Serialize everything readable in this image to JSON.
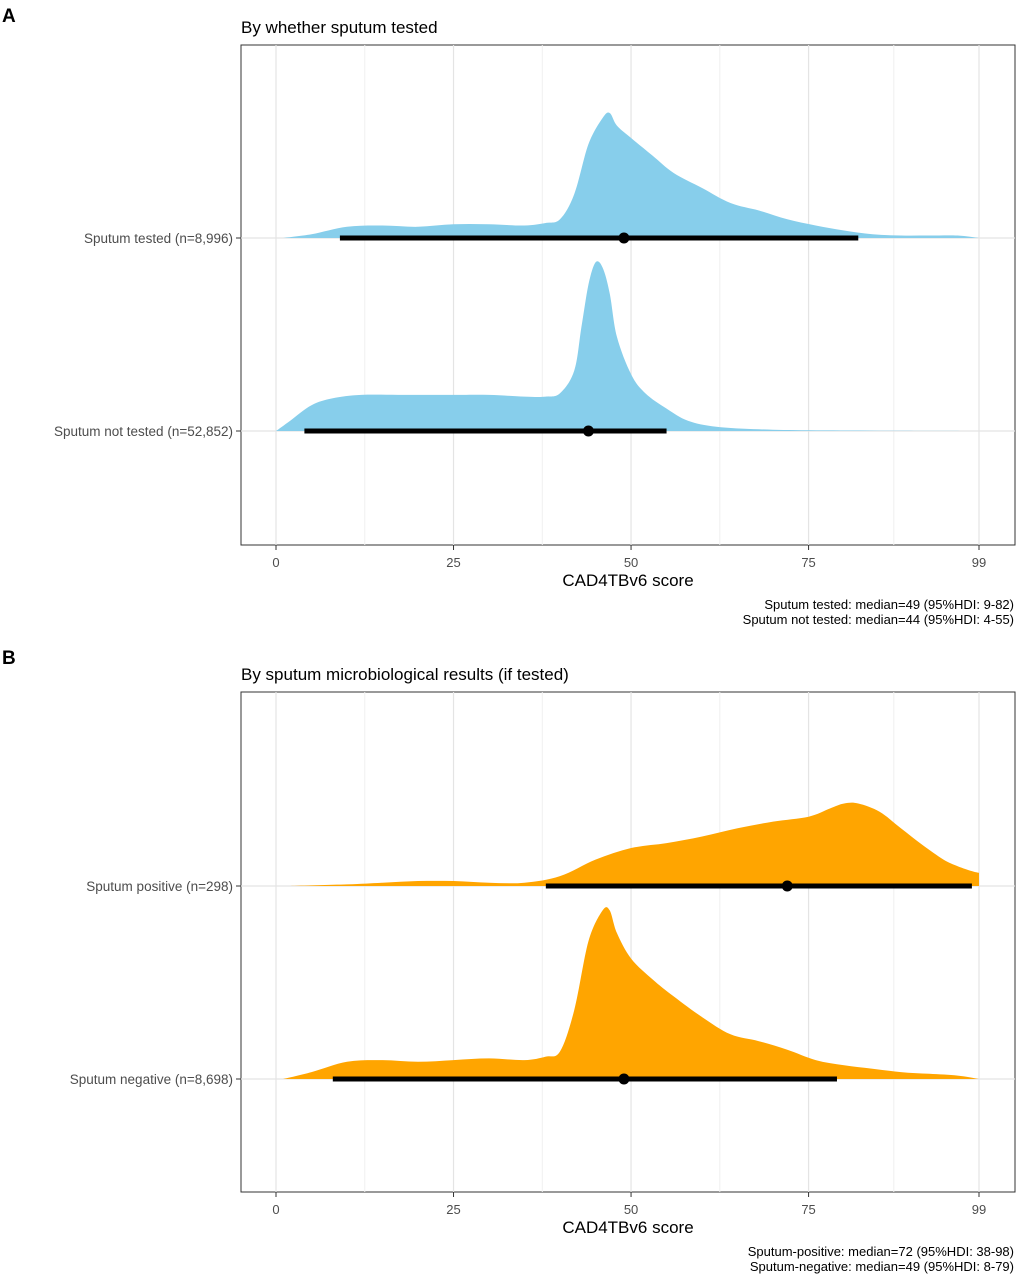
{
  "chart_data": [
    {
      "type": "area",
      "panel_label": "A",
      "title": "By whether sputum tested",
      "xlabel": "CAD4TBv6 score",
      "xlim": [
        0,
        99
      ],
      "x_ticks": [
        "0",
        "25",
        "50",
        "75",
        "99"
      ],
      "fill_color": "#87CEEB",
      "grid": true,
      "series": [
        {
          "name": "Sputum tested (n=8,996)",
          "median": 49,
          "hdi": [
            9,
            82
          ],
          "density": [
            [
              1,
              0.0
            ],
            [
              5,
              0.03
            ],
            [
              10,
              0.09
            ],
            [
              15,
              0.1
            ],
            [
              20,
              0.09
            ],
            [
              25,
              0.11
            ],
            [
              30,
              0.11
            ],
            [
              35,
              0.1
            ],
            [
              38,
              0.12
            ],
            [
              40,
              0.15
            ],
            [
              42,
              0.35
            ],
            [
              44,
              0.75
            ],
            [
              46,
              0.96
            ],
            [
              47,
              1.0
            ],
            [
              48,
              0.9
            ],
            [
              50,
              0.8
            ],
            [
              53,
              0.66
            ],
            [
              56,
              0.52
            ],
            [
              60,
              0.4
            ],
            [
              64,
              0.28
            ],
            [
              68,
              0.22
            ],
            [
              72,
              0.15
            ],
            [
              76,
              0.1
            ],
            [
              80,
              0.06
            ],
            [
              84,
              0.03
            ],
            [
              88,
              0.02
            ],
            [
              92,
              0.02
            ],
            [
              96,
              0.02
            ],
            [
              99,
              0.0
            ]
          ]
        },
        {
          "name": "Sputum not tested (n=52,852)",
          "median": 44,
          "hdi": [
            4,
            55
          ],
          "density": [
            [
              0,
              0.0
            ],
            [
              2,
              0.06
            ],
            [
              5,
              0.15
            ],
            [
              8,
              0.19
            ],
            [
              12,
              0.21
            ],
            [
              18,
              0.21
            ],
            [
              25,
              0.21
            ],
            [
              30,
              0.21
            ],
            [
              35,
              0.2
            ],
            [
              38,
              0.2
            ],
            [
              40,
              0.22
            ],
            [
              42,
              0.35
            ],
            [
              43,
              0.6
            ],
            [
              44,
              0.85
            ],
            [
              45,
              0.98
            ],
            [
              46,
              0.95
            ],
            [
              47,
              0.8
            ],
            [
              48,
              0.55
            ],
            [
              50,
              0.33
            ],
            [
              52,
              0.22
            ],
            [
              55,
              0.13
            ],
            [
              58,
              0.06
            ],
            [
              62,
              0.025
            ],
            [
              68,
              0.01
            ],
            [
              75,
              0.004
            ],
            [
              85,
              0.002
            ],
            [
              99,
              0.0
            ]
          ]
        }
      ],
      "caption_lines": [
        "Sputum tested: median=49 (95%HDI: 9-82)",
        "Sputum not tested: median=44 (95%HDI: 4-55)"
      ]
    },
    {
      "type": "area",
      "panel_label": "B",
      "title": "By sputum microbiological results (if tested)",
      "xlabel": "CAD4TBv6 score",
      "xlim": [
        0,
        99
      ],
      "x_ticks": [
        "0",
        "25",
        "50",
        "75",
        "99"
      ],
      "fill_color": "#FFA500",
      "grid": true,
      "series": [
        {
          "name": "Sputum positive (n=298)",
          "median": 72,
          "hdi": [
            38,
            98
          ],
          "density": [
            [
              2,
              0.0
            ],
            [
              10,
              0.01
            ],
            [
              15,
              0.02
            ],
            [
              20,
              0.03
            ],
            [
              25,
              0.03
            ],
            [
              30,
              0.02
            ],
            [
              35,
              0.02
            ],
            [
              40,
              0.06
            ],
            [
              45,
              0.16
            ],
            [
              50,
              0.23
            ],
            [
              55,
              0.26
            ],
            [
              60,
              0.3
            ],
            [
              65,
              0.35
            ],
            [
              70,
              0.39
            ],
            [
              75,
              0.42
            ],
            [
              78,
              0.47
            ],
            [
              80,
              0.5
            ],
            [
              82,
              0.5
            ],
            [
              85,
              0.45
            ],
            [
              88,
              0.35
            ],
            [
              91,
              0.25
            ],
            [
              94,
              0.16
            ],
            [
              96,
              0.12
            ],
            [
              98,
              0.09
            ],
            [
              99,
              0.08
            ]
          ]
        },
        {
          "name": "Sputum negative (n=8,698)",
          "median": 49,
          "hdi": [
            8,
            79
          ],
          "density": [
            [
              1,
              0.0
            ],
            [
              5,
              0.04
            ],
            [
              10,
              0.1
            ],
            [
              15,
              0.11
            ],
            [
              20,
              0.1
            ],
            [
              25,
              0.11
            ],
            [
              30,
              0.12
            ],
            [
              35,
              0.11
            ],
            [
              38,
              0.13
            ],
            [
              40,
              0.16
            ],
            [
              42,
              0.4
            ],
            [
              44,
              0.8
            ],
            [
              46,
              0.98
            ],
            [
              47,
              0.98
            ],
            [
              48,
              0.85
            ],
            [
              50,
              0.7
            ],
            [
              53,
              0.58
            ],
            [
              56,
              0.48
            ],
            [
              60,
              0.36
            ],
            [
              64,
              0.26
            ],
            [
              68,
              0.22
            ],
            [
              72,
              0.17
            ],
            [
              76,
              0.11
            ],
            [
              80,
              0.08
            ],
            [
              84,
              0.06
            ],
            [
              88,
              0.04
            ],
            [
              92,
              0.03
            ],
            [
              96,
              0.02
            ],
            [
              99,
              0.0
            ]
          ]
        }
      ],
      "caption_lines": [
        "Sputum-positive: median=72 (95%HDI: 38-98)",
        "Sputum-negative: median=49 (95%HDI: 8-79)"
      ]
    }
  ]
}
